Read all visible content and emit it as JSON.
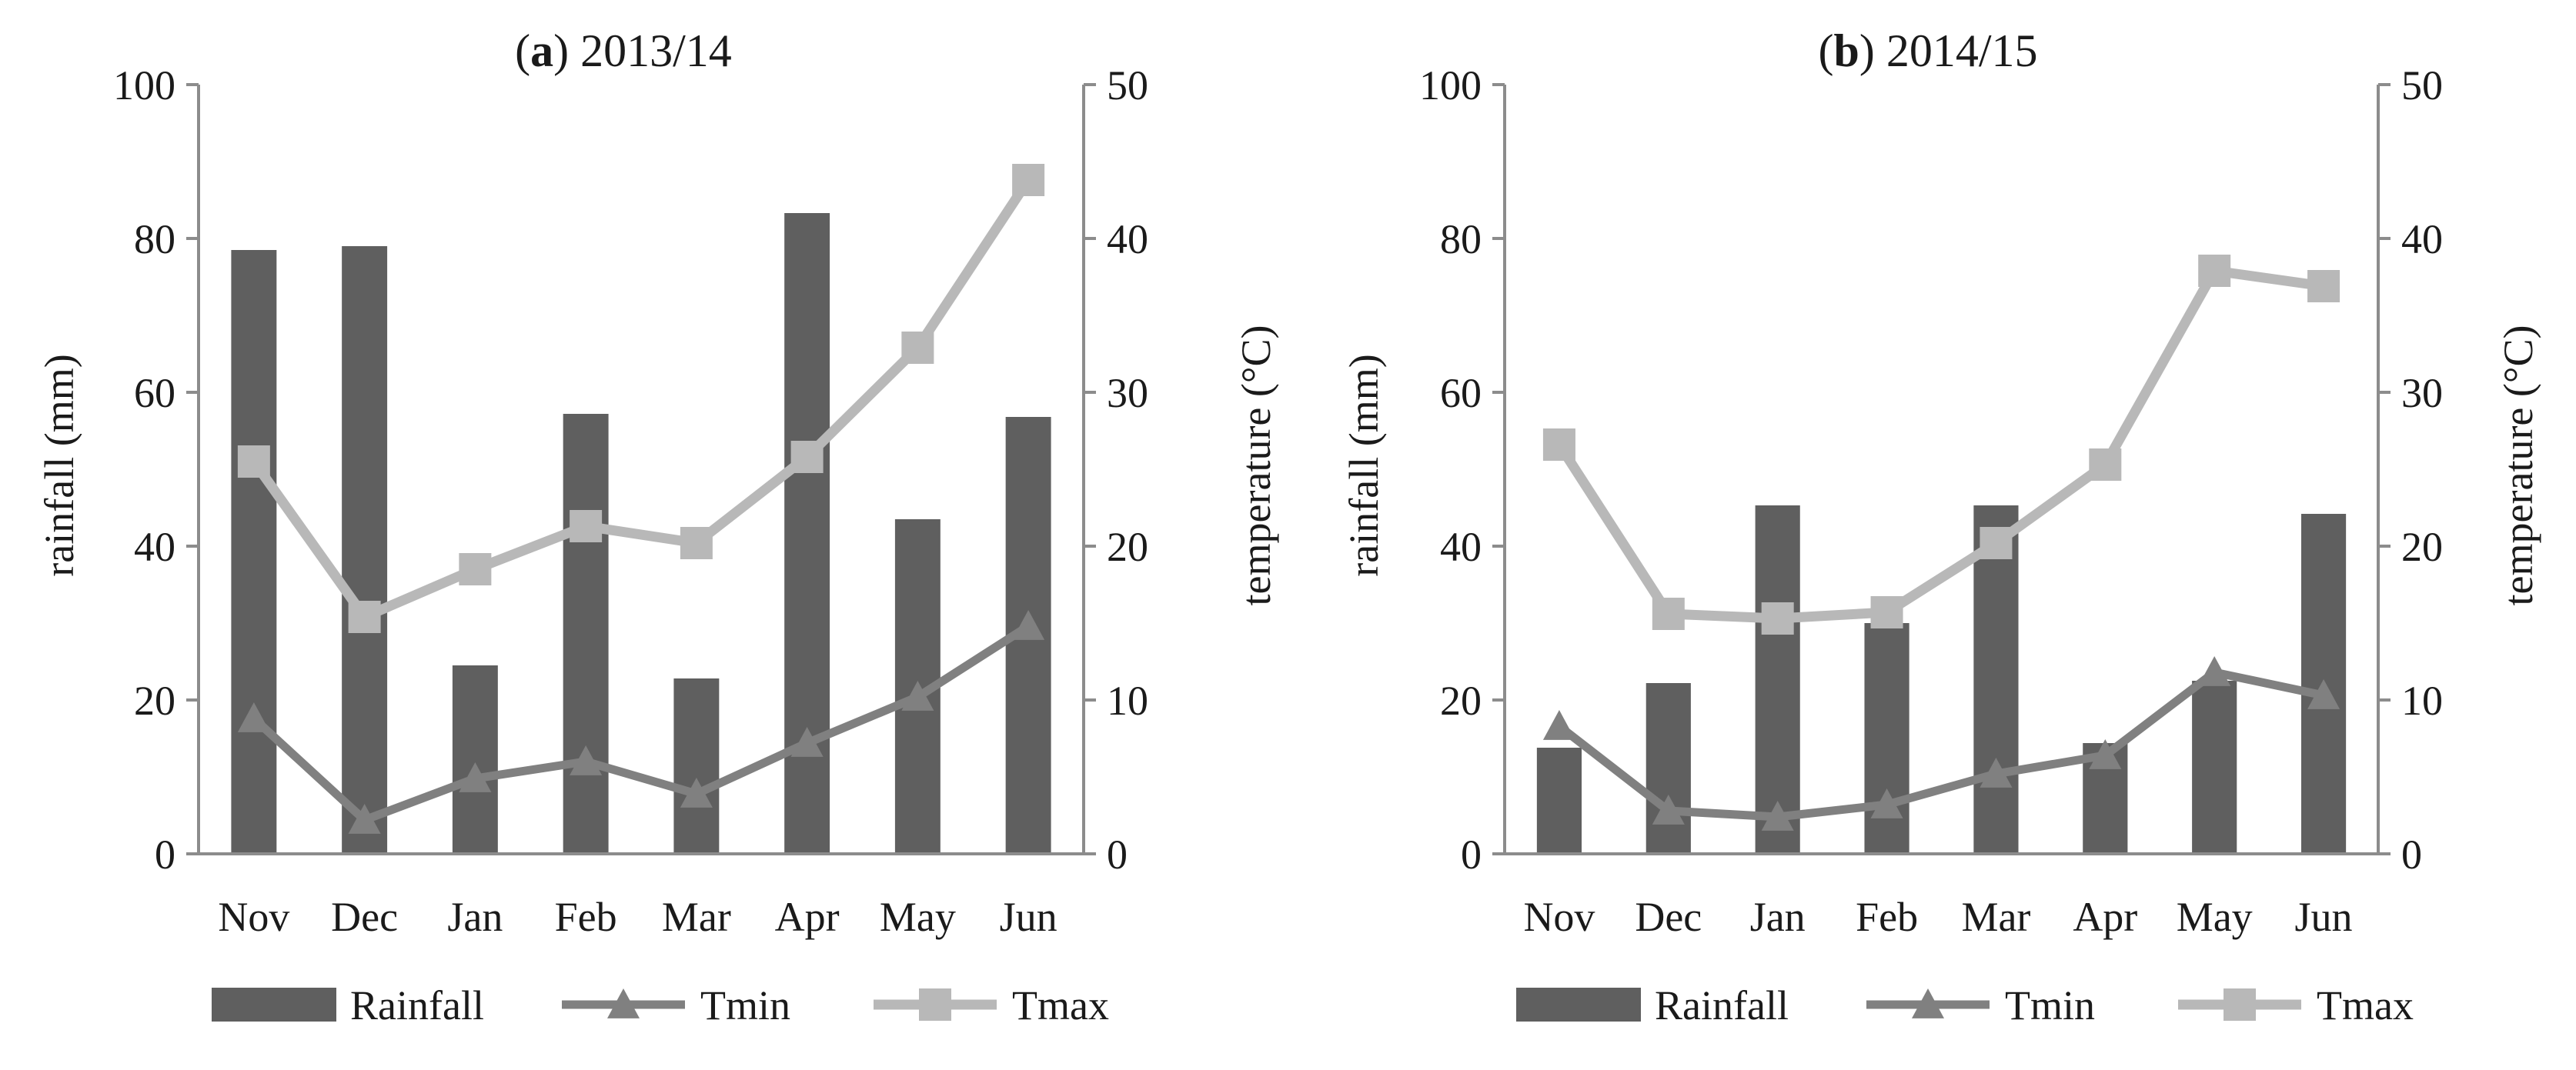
{
  "colors": {
    "rainfall": "#5f5f5f",
    "tmin": "#808080",
    "tmax": "#b8b8b8",
    "axis": "#8c8c8c"
  },
  "chart_data": [
    {
      "type": "bar+line",
      "panel": "a",
      "title_prefix": "a",
      "title_year": "2013/14",
      "ylabel": "rainfall (mm)",
      "y2label": "temperature (°C)",
      "ylim": [
        0,
        100
      ],
      "y2lim": [
        0,
        50
      ],
      "yticks": [
        "0",
        "20",
        "40",
        "60",
        "80",
        "100"
      ],
      "y2ticks": [
        "0",
        "10",
        "20",
        "30",
        "40",
        "50"
      ],
      "categories": [
        "Nov",
        "Dec",
        "Jan",
        "Feb",
        "Mar",
        "Apr",
        "May",
        "Jun"
      ],
      "series": [
        {
          "name": "Rainfall",
          "kind": "bar",
          "axis": "left",
          "values": [
            78.5,
            79,
            24.5,
            57.2,
            22.8,
            83.3,
            43.5,
            56.8
          ]
        },
        {
          "name": "Tmin",
          "kind": "line",
          "marker": "triangle",
          "axis": "right",
          "values": [
            8.8,
            2.2,
            4.9,
            6.0,
            3.9,
            7.2,
            10.2,
            14.8
          ]
        },
        {
          "name": "Tmax",
          "kind": "line",
          "marker": "square",
          "axis": "right",
          "values": [
            25.5,
            15.4,
            18.5,
            21.3,
            20.2,
            25.8,
            32.9,
            43.8
          ]
        }
      ],
      "legend": [
        "Rainfall",
        "Tmin",
        "Tmax"
      ],
      "legend_position": "bottom"
    },
    {
      "type": "bar+line",
      "panel": "b",
      "title_prefix": "b",
      "title_year": "2014/15",
      "ylabel": "rainfall (mm)",
      "y2label": "temperature (°C)",
      "ylim": [
        0,
        100
      ],
      "y2lim": [
        0,
        50
      ],
      "yticks": [
        "0",
        "20",
        "40",
        "60",
        "80",
        "100"
      ],
      "y2ticks": [
        "0",
        "10",
        "20",
        "30",
        "40",
        "50"
      ],
      "categories": [
        "Nov",
        "Dec",
        "Jan",
        "Feb",
        "Mar",
        "Apr",
        "May",
        "Jun"
      ],
      "series": [
        {
          "name": "Rainfall",
          "kind": "bar",
          "axis": "left",
          "values": [
            13.8,
            22.2,
            45.3,
            30.0,
            45.3,
            14.4,
            22.5,
            44.2
          ]
        },
        {
          "name": "Tmin",
          "kind": "line",
          "marker": "triangle",
          "axis": "right",
          "values": [
            8.3,
            2.8,
            2.4,
            3.2,
            5.2,
            6.4,
            11.8,
            10.3
          ]
        },
        {
          "name": "Tmax",
          "kind": "line",
          "marker": "square",
          "axis": "right",
          "values": [
            26.6,
            15.6,
            15.3,
            15.7,
            20.2,
            25.3,
            37.9,
            36.9
          ]
        }
      ],
      "legend": [
        "Rainfall",
        "Tmin",
        "Tmax"
      ],
      "legend_position": "bottom"
    }
  ]
}
